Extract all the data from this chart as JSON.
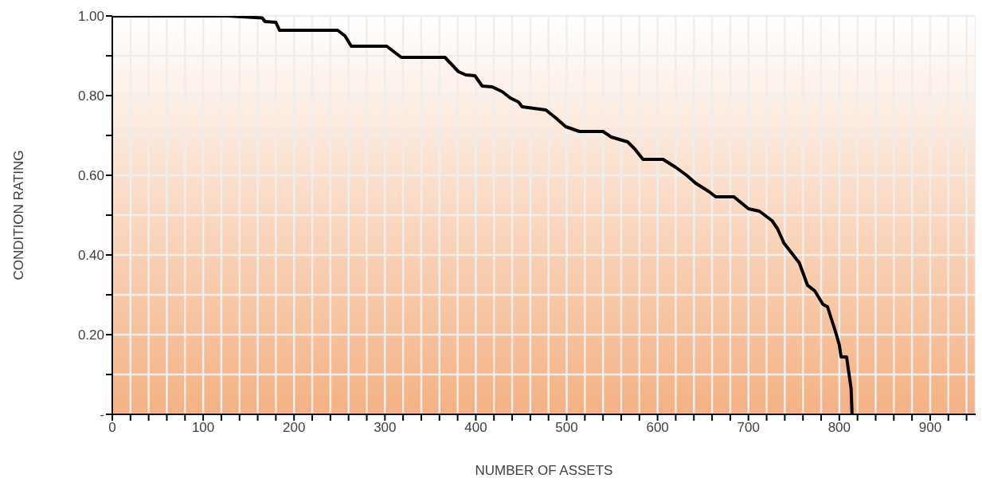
{
  "chart_data": {
    "type": "line",
    "xlabel": "NUMBER OF ASSETS",
    "ylabel": "CONDITION RATING",
    "x": [
      0,
      127,
      165,
      168,
      180,
      184,
      248,
      256,
      263,
      302,
      310,
      318,
      366,
      381,
      389,
      399,
      407,
      418,
      429,
      438,
      447,
      451,
      477,
      488,
      499,
      514,
      540,
      549,
      567,
      575,
      584,
      593,
      606,
      620,
      632,
      642,
      656,
      664,
      684,
      700,
      712,
      726,
      732,
      739,
      756,
      765,
      773,
      782,
      787,
      796,
      800,
      802,
      808,
      813,
      814
    ],
    "series": [
      {
        "color": "#000000",
        "values": [
          1.0,
          1.0,
          0.995,
          0.986,
          0.984,
          0.964,
          0.964,
          0.95,
          0.924,
          0.924,
          0.91,
          0.896,
          0.896,
          0.86,
          0.852,
          0.85,
          0.824,
          0.822,
          0.81,
          0.794,
          0.784,
          0.772,
          0.764,
          0.744,
          0.722,
          0.71,
          0.71,
          0.696,
          0.684,
          0.666,
          0.64,
          0.64,
          0.64,
          0.62,
          0.6,
          0.58,
          0.56,
          0.546,
          0.546,
          0.516,
          0.51,
          0.486,
          0.466,
          0.43,
          0.38,
          0.324,
          0.31,
          0.276,
          0.27,
          0.206,
          0.174,
          0.144,
          0.144,
          0.064,
          0
        ]
      }
    ],
    "xlim": [
      0,
      950
    ],
    "xticks": [
      0,
      {
        "value": 20,
        "label": null
      },
      {
        "value": 40,
        "label": null
      },
      {
        "value": 60,
        "label": null
      },
      {
        "value": 80,
        "label": null
      },
      100,
      {
        "value": 120,
        "label": null
      },
      {
        "value": 140,
        "label": null
      },
      {
        "value": 160,
        "label": null
      },
      {
        "value": 180,
        "label": null
      },
      200,
      {
        "value": 220,
        "label": null
      },
      {
        "value": 240,
        "label": null
      },
      {
        "value": 260,
        "label": null
      },
      {
        "value": 280,
        "label": null
      },
      300,
      {
        "value": 320,
        "label": null
      },
      {
        "value": 340,
        "label": null
      },
      {
        "value": 360,
        "label": null
      },
      {
        "value": 380,
        "label": null
      },
      400,
      {
        "value": 420,
        "label": null
      },
      {
        "value": 440,
        "label": null
      },
      {
        "value": 460,
        "label": null
      },
      {
        "value": 480,
        "label": null
      },
      500,
      {
        "value": 520,
        "label": null
      },
      {
        "value": 540,
        "label": null
      },
      {
        "value": 560,
        "label": null
      },
      {
        "value": 580,
        "label": null
      },
      600,
      {
        "value": 620,
        "label": null
      },
      {
        "value": 640,
        "label": null
      },
      {
        "value": 660,
        "label": null
      },
      {
        "value": 680,
        "label": null
      },
      700,
      {
        "value": 720,
        "label": null
      },
      {
        "value": 740,
        "label": null
      },
      {
        "value": 760,
        "label": null
      },
      {
        "value": 780,
        "label": null
      },
      800,
      {
        "value": 820,
        "label": null
      },
      {
        "value": 840,
        "label": null
      },
      {
        "value": 860,
        "label": null
      },
      {
        "value": 880,
        "label": null
      },
      900,
      {
        "value": 920,
        "label": null
      },
      {
        "value": 940,
        "label": null
      }
    ],
    "ylim": [
      0,
      1
    ],
    "yticks": [
      {
        "value": 0,
        "label": "-"
      },
      {
        "value": 0.1,
        "label": null
      },
      {
        "value": 0.2,
        "label": "0.20"
      },
      {
        "value": 0.3,
        "label": null
      },
      {
        "value": 0.4,
        "label": "0.40"
      },
      {
        "value": 0.5,
        "label": null
      },
      {
        "value": 0.6,
        "label": "0.60"
      },
      {
        "value": 0.7,
        "label": null
      },
      {
        "value": 0.8,
        "label": "0.80"
      },
      {
        "value": 0.9,
        "label": null
      },
      {
        "value": 1,
        "label": "1.00"
      }
    ],
    "grid": true,
    "marker": "none",
    "line_style": "solid"
  }
}
